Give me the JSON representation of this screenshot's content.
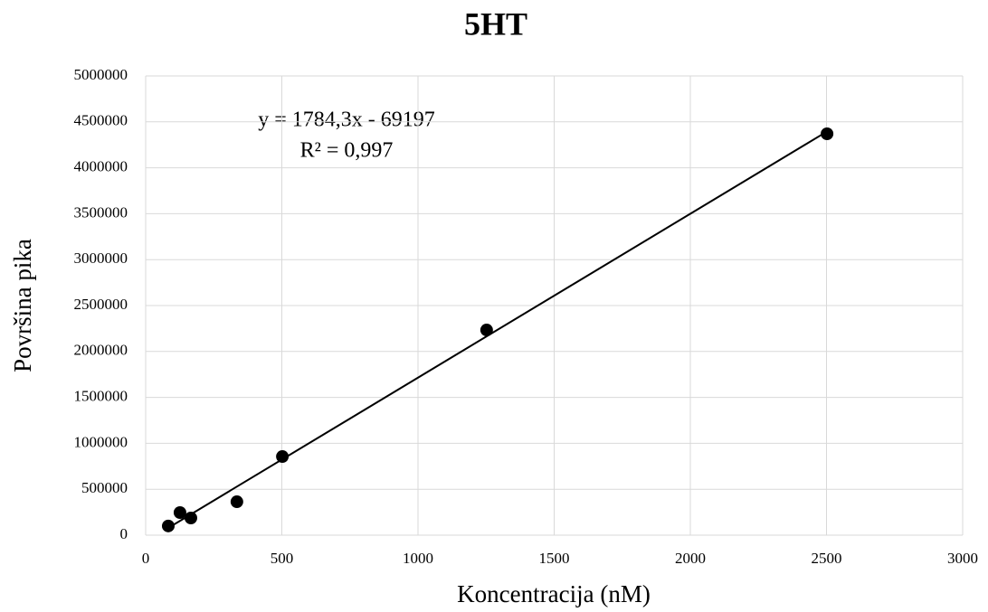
{
  "chart_data": {
    "type": "scatter",
    "title": "5HT",
    "x_label": "Koncentracija (nM)",
    "y_label": "Površina pika",
    "x": [
      83,
      126,
      166,
      335,
      502,
      1252,
      2502
    ],
    "values": [
      100000,
      246000,
      187000,
      364000,
      856000,
      2234000,
      4370000
    ],
    "color": "#000000",
    "trendline": {
      "slope": 1784.3,
      "intercept": -69197,
      "equation": "y = 1784,3x - 69197",
      "r2_label": "R² = 0,997",
      "color": "#000000"
    },
    "xlim": [
      0,
      3000
    ],
    "xticks": [
      0,
      500,
      1000,
      1500,
      2000,
      2500,
      3000
    ],
    "ylim": [
      0,
      5000000
    ],
    "yticks": [
      0,
      500000,
      1000000,
      1500000,
      2000000,
      2500000,
      3000000,
      3500000,
      4000000,
      4500000,
      5000000
    ],
    "grid": true
  }
}
